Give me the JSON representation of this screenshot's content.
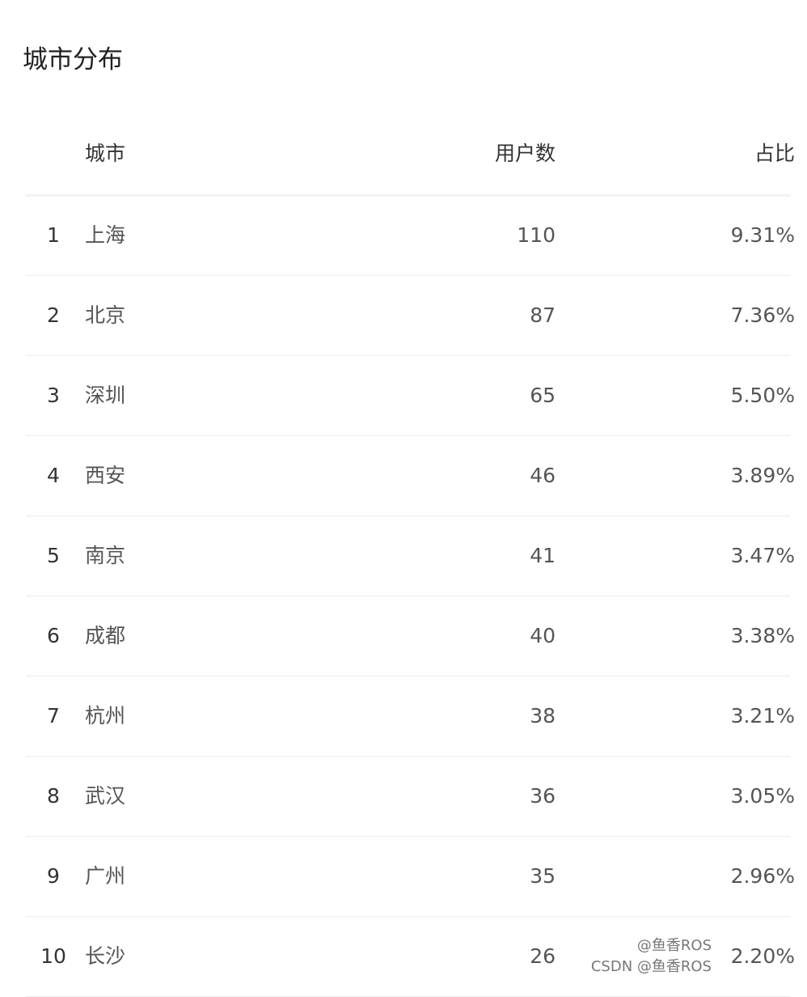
{
  "title": "城市分布",
  "headers": {
    "city": "城市",
    "users": "用户数",
    "share": "占比"
  },
  "rows": [
    {
      "rank": "1",
      "city": "上海",
      "users": "110",
      "share": "9.31%"
    },
    {
      "rank": "2",
      "city": "北京",
      "users": "87",
      "share": "7.36%"
    },
    {
      "rank": "3",
      "city": "深圳",
      "users": "65",
      "share": "5.50%"
    },
    {
      "rank": "4",
      "city": "西安",
      "users": "46",
      "share": "3.89%"
    },
    {
      "rank": "5",
      "city": "南京",
      "users": "41",
      "share": "3.47%"
    },
    {
      "rank": "6",
      "city": "成都",
      "users": "40",
      "share": "3.38%"
    },
    {
      "rank": "7",
      "city": "杭州",
      "users": "38",
      "share": "3.21%"
    },
    {
      "rank": "8",
      "city": "武汉",
      "users": "36",
      "share": "3.05%"
    },
    {
      "rank": "9",
      "city": "广州",
      "users": "35",
      "share": "2.96%"
    },
    {
      "rank": "10",
      "city": "长沙",
      "users": "26",
      "share": "2.20%"
    }
  ],
  "watermarks": [
    "@鱼香ROS",
    "CSDN @鱼香ROS"
  ]
}
